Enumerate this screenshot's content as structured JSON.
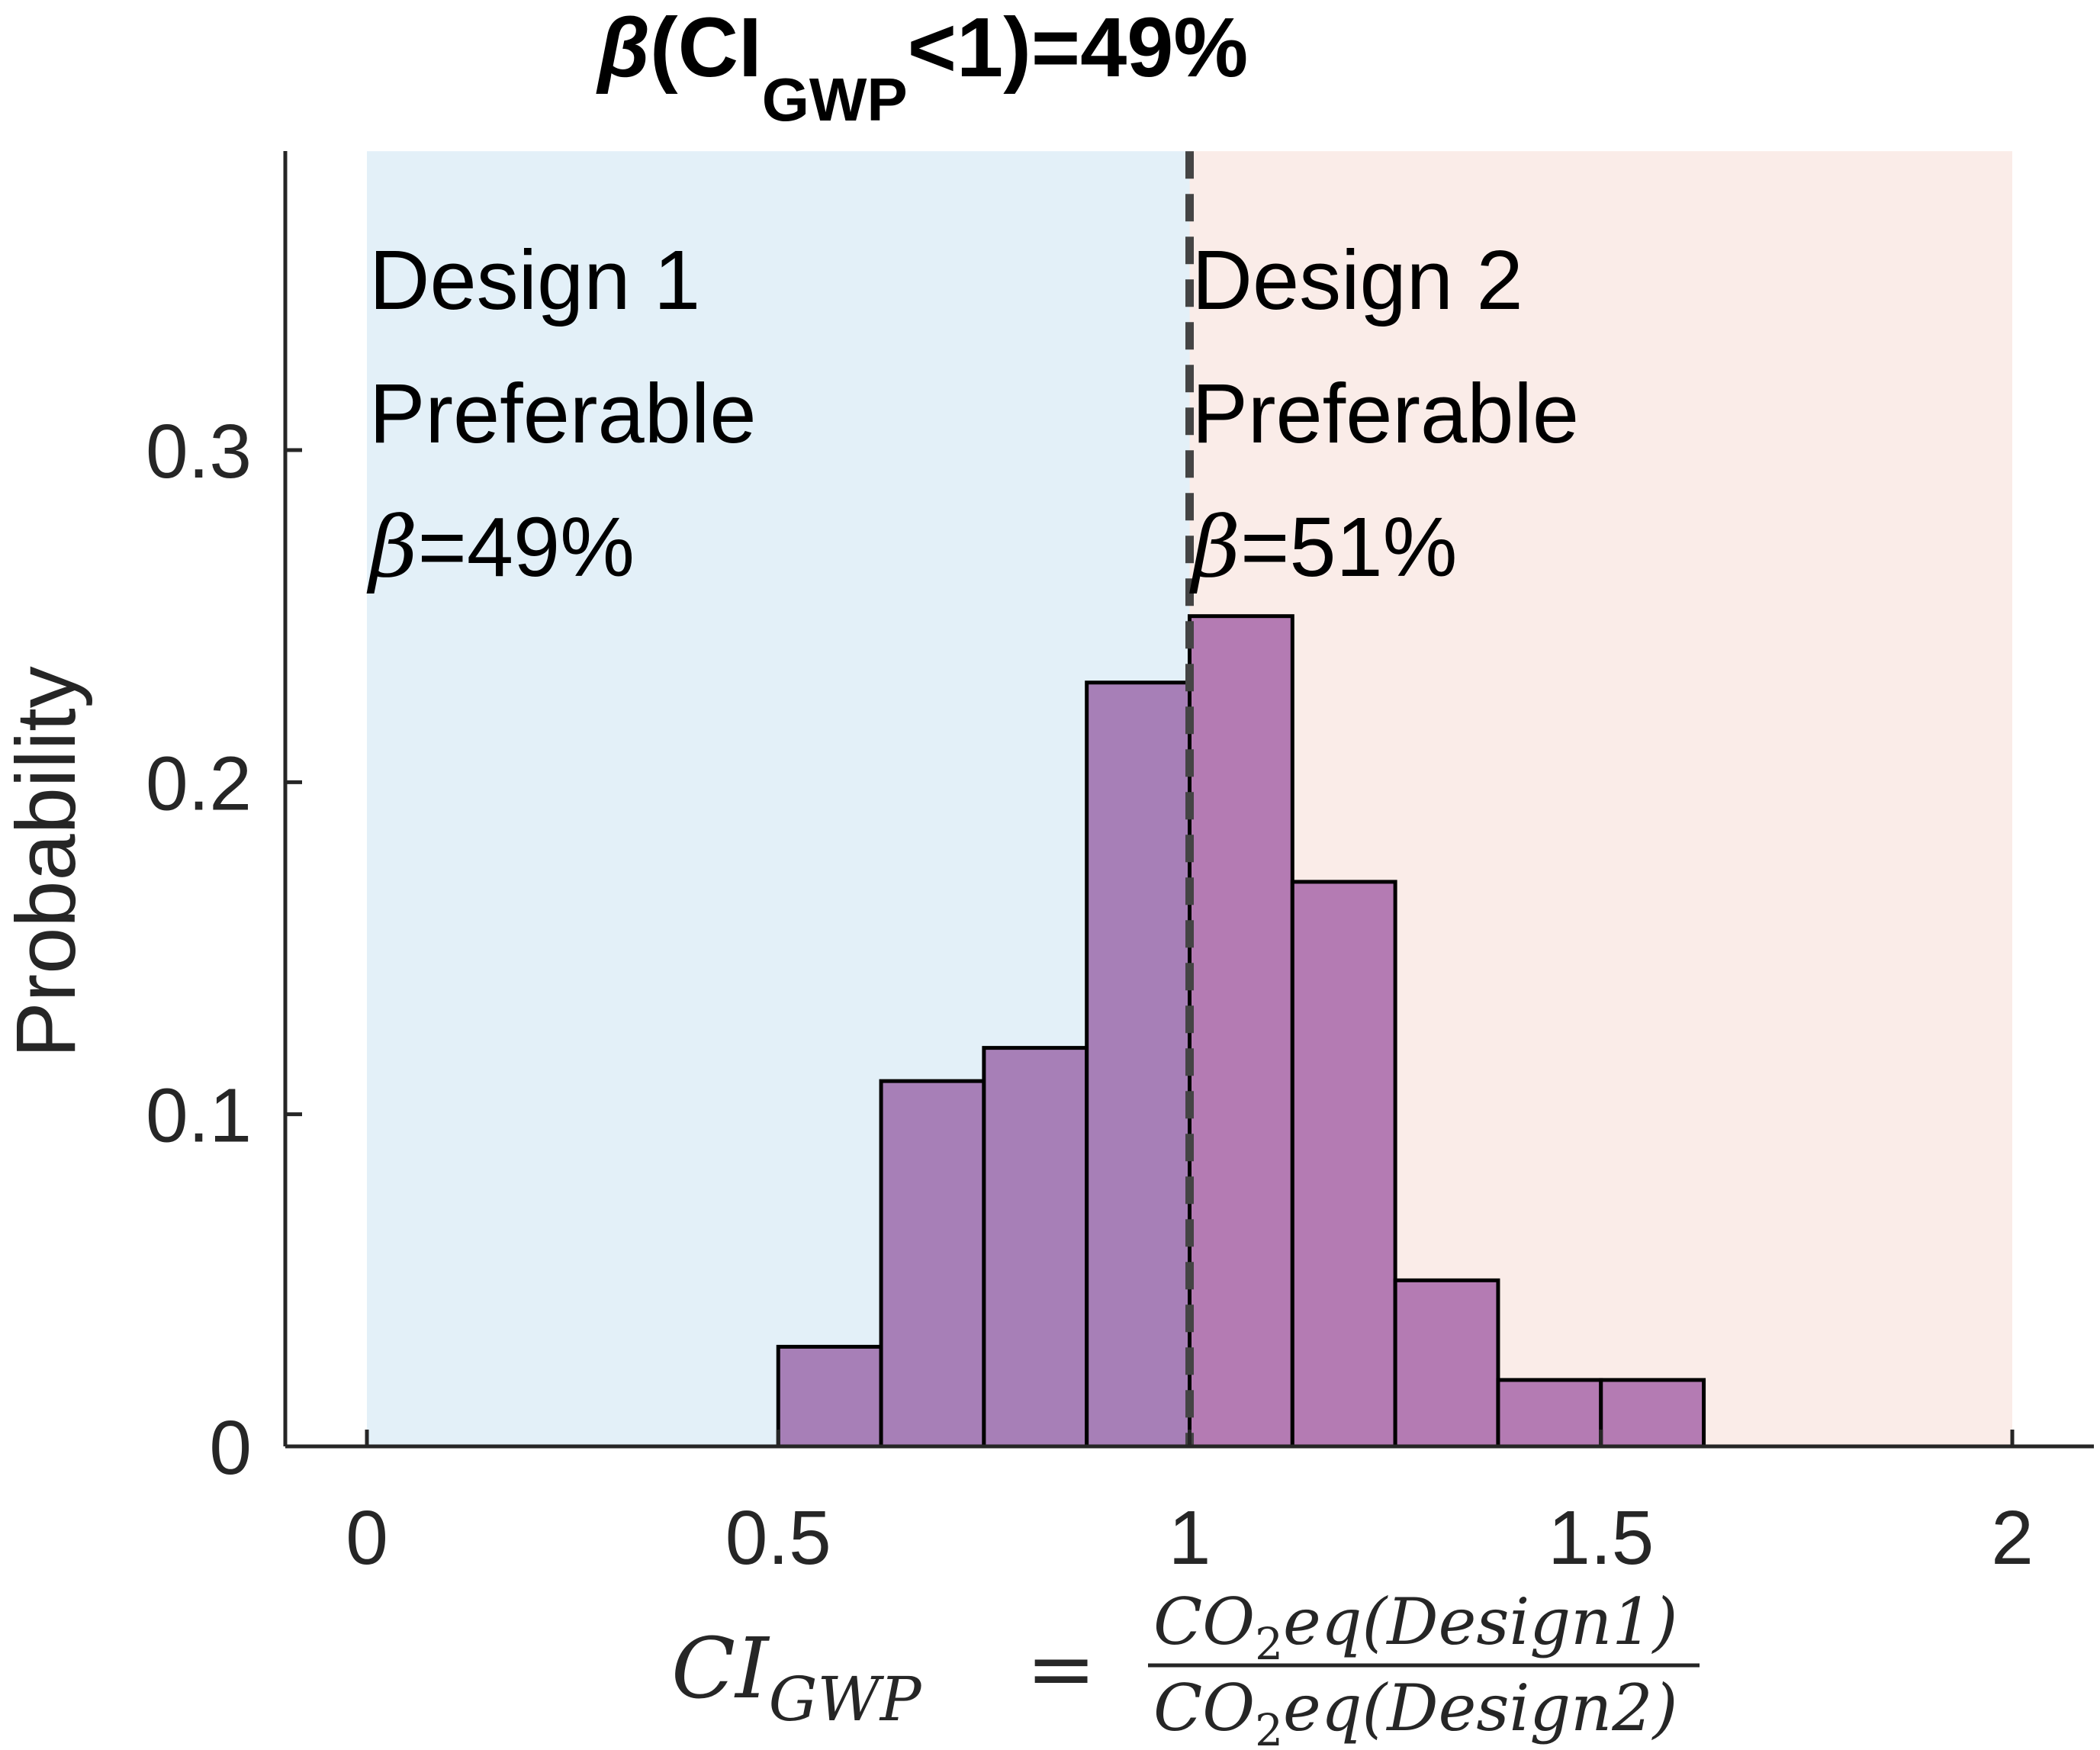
{
  "chart_data": {
    "type": "bar",
    "title": {
      "symbol": "β",
      "open": "(CI",
      "subscript": "GWP",
      "rest": "<1)=49%"
    },
    "ylabel": "Probability",
    "xlabel": {
      "lhs": "CI",
      "lhs_sub": "GWP",
      "equals": "=",
      "num_a": "CO",
      "num_sub": "2",
      "num_b": "eq(Design1)",
      "den_a": "CO",
      "den_sub": "2",
      "den_b": "eq(Design2)"
    },
    "xlim": [
      0,
      2
    ],
    "ylim": [
      0,
      0.39
    ],
    "xticks": [
      0,
      0.5,
      1,
      1.5,
      2
    ],
    "xtick_labels": [
      "0",
      "0.5",
      "1",
      "1.5",
      "2"
    ],
    "yticks": [
      0,
      0.1,
      0.2,
      0.3
    ],
    "ytick_labels": [
      "0",
      "0.1",
      "0.2",
      "0.3"
    ],
    "bin_edges": [
      0.5,
      0.625,
      0.75,
      0.875,
      1.0,
      1.125,
      1.25,
      1.375,
      1.5,
      1.625
    ],
    "values": [
      0.03,
      0.11,
      0.12,
      0.23,
      0.25,
      0.17,
      0.05,
      0.02,
      0.02
    ],
    "threshold": 1,
    "regions": [
      {
        "x0": 0,
        "x1": 1,
        "color": "#e3f0f8",
        "line1": "Design 1",
        "line2": "Preferable",
        "beta_symbol": "β",
        "beta_text": "=49%"
      },
      {
        "x0": 1,
        "x1": 2,
        "color": "#faece8",
        "line1": "Design 2",
        "line2": "Preferable",
        "beta_symbol": "β",
        "beta_text": "=51%"
      }
    ],
    "colors": {
      "bar_left": "#a77fb7",
      "bar_right": "#b47bb3",
      "bar_edge": "#000000",
      "threshold_line": "#444444",
      "axis": "#262626"
    },
    "grid": false,
    "legend": "none"
  }
}
